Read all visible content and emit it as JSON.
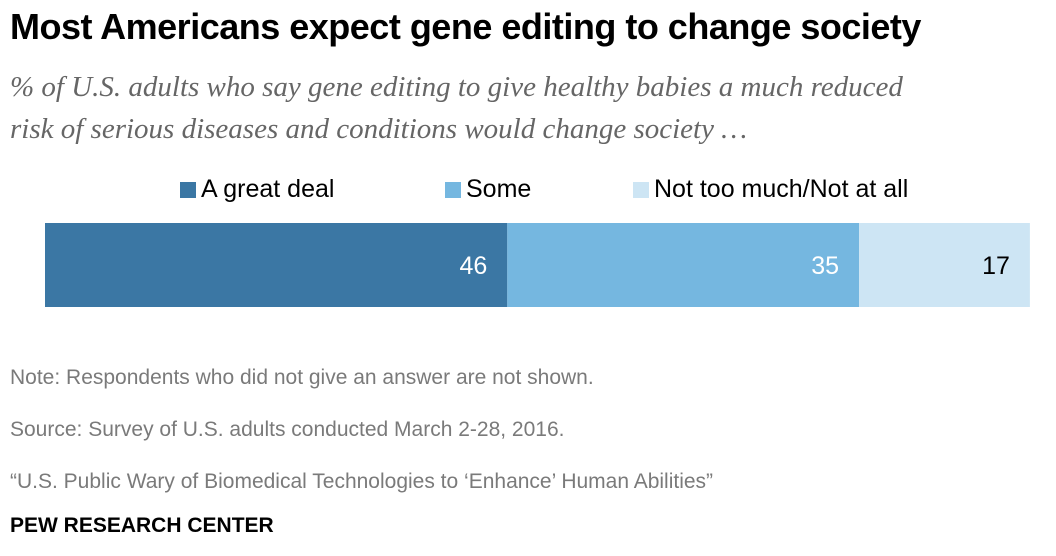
{
  "title": "Most Americans expect gene editing to change society",
  "subtitle_line1": "% of U.S. adults who say gene editing to give healthy babies a much reduced",
  "subtitle_line2": "risk of serious diseases and conditions would change society …",
  "chart_data": {
    "type": "bar",
    "orientation": "horizontal-stacked",
    "categories": [
      ""
    ],
    "series": [
      {
        "name": "A great deal",
        "values": [
          46
        ],
        "color": "#3b77a4"
      },
      {
        "name": "Some",
        "values": [
          35
        ],
        "color": "#75b7e0"
      },
      {
        "name": "Not too much/Not at all",
        "values": [
          17
        ],
        "color": "#cde5f4"
      }
    ],
    "label_colors": [
      "#ffffff",
      "#ffffff",
      "#000000"
    ],
    "legend_position": "top",
    "grid": false
  },
  "notes": {
    "note": "Note: Respondents who did not give an answer are not shown.",
    "source": "Source: Survey of U.S. adults conducted March 2-28, 2016.",
    "report": "“U.S. Public Wary of Biomedical Technologies to ‘Enhance’ Human Abilities”"
  },
  "brand": "PEW RESEARCH CENTER"
}
